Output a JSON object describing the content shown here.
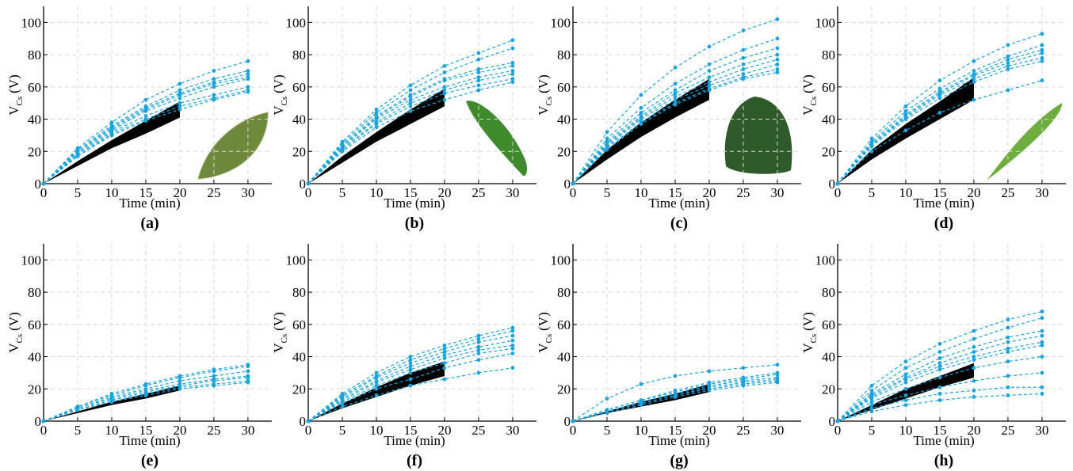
{
  "chart_data": [
    {
      "type": "line",
      "caption": "(a)",
      "x_label": "Time (min)",
      "y_label": "V",
      "y_label_sub": "Cs",
      "y_label_unit": "(V)",
      "grid": true,
      "x": [
        0,
        5,
        10,
        15,
        20,
        25,
        30
      ],
      "xlim": [
        0,
        33.5
      ],
      "ylim": [
        0,
        110
      ],
      "xticks": [
        0,
        5,
        10,
        15,
        20,
        25,
        30
      ],
      "yticks": [
        0,
        20,
        40,
        60,
        80,
        100
      ],
      "series": [
        {
          "color": "#1aa3dc",
          "values": [
            0,
            22,
            38,
            52,
            62,
            70,
            76
          ]
        },
        {
          "color": "#1aa3dc",
          "values": [
            0,
            21,
            36,
            48,
            58,
            65,
            70
          ]
        },
        {
          "color": "#1aa3dc",
          "values": [
            0,
            20,
            35,
            47,
            56,
            63,
            68
          ]
        },
        {
          "color": "#1aa3dc",
          "values": [
            0,
            20,
            34,
            46,
            55,
            62,
            66
          ]
        },
        {
          "color": "#1aa3dc",
          "values": [
            0,
            19,
            33,
            45,
            53,
            60,
            65
          ]
        },
        {
          "color": "#1aa3dc",
          "values": [
            0,
            18,
            32,
            42,
            50,
            55,
            60
          ]
        },
        {
          "color": "#1aa3dc",
          "values": [
            0,
            17,
            31,
            40,
            48,
            53,
            58
          ]
        },
        {
          "color": "#1aa3dc",
          "values": [
            0,
            17,
            30,
            39,
            46,
            52,
            57
          ]
        }
      ],
      "band": {
        "color": "#000000",
        "x": [
          0,
          5,
          10,
          15,
          20
        ],
        "upper": [
          0,
          14,
          27,
          39,
          51
        ],
        "lower": [
          0,
          11,
          22,
          31,
          41
        ]
      }
    },
    {
      "type": "line",
      "caption": "(b)",
      "x_label": "Time (min)",
      "y_label": "V",
      "y_label_sub": "Cs",
      "y_label_unit": "(V)",
      "grid": true,
      "x": [
        0,
        5,
        10,
        15,
        20,
        25,
        30
      ],
      "xlim": [
        0,
        33.5
      ],
      "ylim": [
        0,
        110
      ],
      "xticks": [
        0,
        5,
        10,
        15,
        20,
        25,
        30
      ],
      "yticks": [
        0,
        20,
        40,
        60,
        80,
        100
      ],
      "series": [
        {
          "color": "#1aa3dc",
          "values": [
            0,
            26,
            46,
            61,
            73,
            81,
            89
          ]
        },
        {
          "color": "#1aa3dc",
          "values": [
            0,
            25,
            44,
            58,
            69,
            77,
            84
          ]
        },
        {
          "color": "#1aa3dc",
          "values": [
            0,
            24,
            42,
            55,
            65,
            71,
            75
          ]
        },
        {
          "color": "#1aa3dc",
          "values": [
            0,
            23,
            41,
            54,
            64,
            69,
            73
          ]
        },
        {
          "color": "#1aa3dc",
          "values": [
            0,
            23,
            40,
            52,
            60,
            66,
            70
          ]
        },
        {
          "color": "#1aa3dc",
          "values": [
            0,
            22,
            38,
            50,
            58,
            64,
            68
          ]
        },
        {
          "color": "#1aa3dc",
          "values": [
            0,
            21,
            37,
            48,
            56,
            61,
            65
          ]
        },
        {
          "color": "#1aa3dc",
          "values": [
            0,
            20,
            35,
            45,
            52,
            58,
            63
          ]
        }
      ],
      "band": {
        "color": "#000000",
        "x": [
          0,
          5,
          10,
          15,
          20
        ],
        "upper": [
          0,
          17,
          32,
          46,
          59
        ],
        "lower": [
          0,
          13,
          26,
          37,
          48
        ]
      }
    },
    {
      "type": "line",
      "caption": "(c)",
      "x_label": "Time (min)",
      "y_label": "V",
      "y_label_sub": "Cs",
      "y_label_unit": "(V)",
      "grid": true,
      "x": [
        0,
        5,
        10,
        15,
        20,
        25,
        30
      ],
      "xlim": [
        0,
        33.5
      ],
      "ylim": [
        0,
        110
      ],
      "xticks": [
        0,
        5,
        10,
        15,
        20,
        25,
        30
      ],
      "yticks": [
        0,
        20,
        40,
        60,
        80,
        100
      ],
      "series": [
        {
          "color": "#1aa3dc",
          "values": [
            0,
            32,
            55,
            72,
            85,
            95,
            102
          ]
        },
        {
          "color": "#1aa3dc",
          "values": [
            0,
            28,
            47,
            62,
            74,
            83,
            90
          ]
        },
        {
          "color": "#1aa3dc",
          "values": [
            0,
            26,
            44,
            58,
            70,
            78,
            84
          ]
        },
        {
          "color": "#1aa3dc",
          "values": [
            0,
            25,
            42,
            56,
            66,
            74,
            80
          ]
        },
        {
          "color": "#1aa3dc",
          "values": [
            0,
            24,
            41,
            54,
            63,
            71,
            77
          ]
        },
        {
          "color": "#1aa3dc",
          "values": [
            0,
            23,
            40,
            52,
            61,
            68,
            74
          ]
        },
        {
          "color": "#1aa3dc",
          "values": [
            0,
            22,
            38,
            50,
            59,
            66,
            71
          ]
        },
        {
          "color": "#1aa3dc",
          "values": [
            0,
            21,
            37,
            49,
            58,
            65,
            69
          ]
        }
      ],
      "band": {
        "color": "#000000",
        "x": [
          0,
          5,
          10,
          15,
          20
        ],
        "upper": [
          0,
          21,
          38,
          52,
          65
        ],
        "lower": [
          0,
          15,
          29,
          41,
          52
        ]
      }
    },
    {
      "type": "line",
      "caption": "(d)",
      "x_label": "Time (min)",
      "y_label": "V",
      "y_label_sub": "Cs",
      "y_label_unit": "(V)",
      "grid": true,
      "x": [
        0,
        5,
        10,
        15,
        20,
        25,
        30
      ],
      "xlim": [
        0,
        33.5
      ],
      "ylim": [
        0,
        110
      ],
      "xticks": [
        0,
        5,
        10,
        15,
        20,
        25,
        30
      ],
      "yticks": [
        0,
        20,
        40,
        60,
        80,
        100
      ],
      "series": [
        {
          "color": "#1aa3dc",
          "values": [
            0,
            28,
            48,
            64,
            76,
            86,
            93
          ]
        },
        {
          "color": "#1aa3dc",
          "values": [
            0,
            26,
            45,
            59,
            70,
            79,
            86
          ]
        },
        {
          "color": "#1aa3dc",
          "values": [
            0,
            25,
            43,
            57,
            68,
            77,
            83
          ]
        },
        {
          "color": "#1aa3dc",
          "values": [
            0,
            24,
            42,
            56,
            67,
            75,
            81
          ]
        },
        {
          "color": "#1aa3dc",
          "values": [
            0,
            24,
            41,
            55,
            65,
            73,
            78
          ]
        },
        {
          "color": "#1aa3dc",
          "values": [
            0,
            23,
            40,
            53,
            63,
            71,
            76
          ]
        },
        {
          "color": "#1aa3dc",
          "values": [
            0,
            20,
            33,
            44,
            52,
            58,
            64
          ]
        }
      ],
      "band": {
        "color": "#000000",
        "x": [
          0,
          5,
          10,
          15,
          20
        ],
        "upper": [
          0,
          21,
          37,
          51,
          66
        ],
        "lower": [
          0,
          15,
          28,
          40,
          52
        ]
      }
    },
    {
      "type": "line",
      "caption": "(e)",
      "x_label": "Time (min)",
      "y_label": "V",
      "y_label_sub": "Cs",
      "y_label_unit": "(V)",
      "grid": true,
      "x": [
        0,
        5,
        10,
        15,
        20,
        25,
        30
      ],
      "xlim": [
        0,
        33.5
      ],
      "ylim": [
        0,
        110
      ],
      "xticks": [
        0,
        5,
        10,
        15,
        20,
        25,
        30
      ],
      "yticks": [
        0,
        20,
        40,
        60,
        80,
        100
      ],
      "series": [
        {
          "color": "#1aa3dc",
          "values": [
            0,
            9,
            17,
            23,
            28,
            32,
            35
          ]
        },
        {
          "color": "#1aa3dc",
          "values": [
            0,
            9,
            16,
            22,
            27,
            31,
            34
          ]
        },
        {
          "color": "#1aa3dc",
          "values": [
            0,
            8,
            15,
            20,
            25,
            28,
            31
          ]
        },
        {
          "color": "#1aa3dc",
          "values": [
            0,
            8,
            14,
            19,
            23,
            26,
            28
          ]
        },
        {
          "color": "#1aa3dc",
          "values": [
            0,
            7,
            13,
            18,
            22,
            25,
            27
          ]
        },
        {
          "color": "#1aa3dc",
          "values": [
            0,
            7,
            12,
            17,
            21,
            23,
            25
          ]
        },
        {
          "color": "#1aa3dc",
          "values": [
            0,
            7,
            12,
            16,
            20,
            22,
            24
          ]
        }
      ],
      "band": {
        "color": "#000000",
        "x": [
          0,
          5,
          10,
          15,
          20
        ],
        "upper": [
          0,
          6,
          12,
          17,
          22
        ],
        "lower": [
          0,
          5,
          10,
          14,
          19
        ]
      }
    },
    {
      "type": "line",
      "caption": "(f)",
      "x_label": "Time (min)",
      "y_label": "V",
      "y_label_sub": "Cs",
      "y_label_unit": "(V)",
      "grid": true,
      "x": [
        0,
        5,
        10,
        15,
        20,
        25,
        30
      ],
      "xlim": [
        0,
        33.5
      ],
      "ylim": [
        0,
        110
      ],
      "xticks": [
        0,
        5,
        10,
        15,
        20,
        25,
        30
      ],
      "yticks": [
        0,
        20,
        40,
        60,
        80,
        100
      ],
      "series": [
        {
          "color": "#1aa3dc",
          "values": [
            0,
            17,
            30,
            40,
            47,
            53,
            58
          ]
        },
        {
          "color": "#1aa3dc",
          "values": [
            0,
            16,
            28,
            38,
            45,
            51,
            56
          ]
        },
        {
          "color": "#1aa3dc",
          "values": [
            0,
            15,
            27,
            36,
            43,
            49,
            53
          ]
        },
        {
          "color": "#1aa3dc",
          "values": [
            0,
            14,
            25,
            34,
            41,
            46,
            50
          ]
        },
        {
          "color": "#1aa3dc",
          "values": [
            0,
            13,
            24,
            32,
            39,
            44,
            47
          ]
        },
        {
          "color": "#1aa3dc",
          "values": [
            0,
            12,
            22,
            30,
            36,
            42,
            45
          ]
        },
        {
          "color": "#1aa3dc",
          "values": [
            0,
            11,
            20,
            26,
            33,
            38,
            42
          ]
        },
        {
          "color": "#1aa3dc",
          "values": [
            0,
            9,
            16,
            22,
            26,
            30,
            33
          ]
        }
      ],
      "band": {
        "color": "#000000",
        "x": [
          0,
          5,
          10,
          15,
          20
        ],
        "upper": [
          0,
          11,
          21,
          30,
          37
        ],
        "lower": [
          0,
          8,
          15,
          22,
          28
        ]
      }
    },
    {
      "type": "line",
      "caption": "(g)",
      "x_label": "Time (min)",
      "y_label": "V",
      "y_label_sub": "Cs",
      "y_label_unit": "(V)",
      "grid": true,
      "x": [
        0,
        5,
        10,
        15,
        20,
        25,
        30
      ],
      "xlim": [
        0,
        33.5
      ],
      "ylim": [
        0,
        110
      ],
      "xticks": [
        0,
        5,
        10,
        15,
        20,
        25,
        30
      ],
      "yticks": [
        0,
        20,
        40,
        60,
        80,
        100
      ],
      "series": [
        {
          "color": "#1aa3dc",
          "values": [
            0,
            14,
            23,
            28,
            31,
            33,
            35
          ]
        },
        {
          "color": "#1aa3dc",
          "values": [
            0,
            7,
            13,
            19,
            24,
            27,
            30
          ]
        },
        {
          "color": "#1aa3dc",
          "values": [
            0,
            7,
            13,
            18,
            23,
            26,
            29
          ]
        },
        {
          "color": "#1aa3dc",
          "values": [
            0,
            6,
            12,
            17,
            22,
            25,
            27
          ]
        },
        {
          "color": "#1aa3dc",
          "values": [
            0,
            6,
            11,
            16,
            21,
            24,
            26
          ]
        },
        {
          "color": "#1aa3dc",
          "values": [
            0,
            6,
            11,
            16,
            20,
            23,
            25
          ]
        },
        {
          "color": "#1aa3dc",
          "values": [
            0,
            5,
            10,
            15,
            19,
            22,
            24
          ]
        }
      ],
      "band": {
        "color": "#000000",
        "x": [
          0,
          5,
          10,
          15,
          20
        ],
        "upper": [
          0,
          6,
          12,
          17,
          23
        ],
        "lower": [
          0,
          5,
          9,
          13,
          18
        ]
      }
    },
    {
      "type": "line",
      "caption": "(h)",
      "x_label": "Time (min)",
      "y_label": "V",
      "y_label_sub": "Cs",
      "y_label_unit": "(V)",
      "grid": true,
      "x": [
        0,
        5,
        10,
        15,
        20,
        25,
        30
      ],
      "xlim": [
        0,
        33.5
      ],
      "ylim": [
        0,
        110
      ],
      "xticks": [
        0,
        5,
        10,
        15,
        20,
        25,
        30
      ],
      "yticks": [
        0,
        20,
        40,
        60,
        80,
        100
      ],
      "series": [
        {
          "color": "#1aa3dc",
          "values": [
            0,
            22,
            37,
            48,
            56,
            63,
            68
          ]
        },
        {
          "color": "#1aa3dc",
          "values": [
            0,
            19,
            33,
            43,
            51,
            58,
            64
          ]
        },
        {
          "color": "#1aa3dc",
          "values": [
            0,
            17,
            29,
            39,
            46,
            52,
            56
          ]
        },
        {
          "color": "#1aa3dc",
          "values": [
            0,
            16,
            27,
            36,
            43,
            49,
            53
          ]
        },
        {
          "color": "#1aa3dc",
          "values": [
            0,
            15,
            26,
            34,
            40,
            45,
            49
          ]
        },
        {
          "color": "#1aa3dc",
          "values": [
            0,
            14,
            24,
            32,
            38,
            43,
            47
          ]
        },
        {
          "color": "#1aa3dc",
          "values": [
            0,
            12,
            20,
            27,
            33,
            37,
            40
          ]
        },
        {
          "color": "#1aa3dc",
          "values": [
            0,
            10,
            16,
            21,
            25,
            28,
            30
          ]
        },
        {
          "color": "#1aa3dc",
          "values": [
            0,
            8,
            13,
            17,
            19,
            21,
            21
          ]
        },
        {
          "color": "#1aa3dc",
          "values": [
            0,
            6,
            10,
            13,
            15,
            16,
            17
          ]
        }
      ],
      "band": {
        "color": "#000000",
        "x": [
          0,
          5,
          10,
          15,
          20
        ],
        "upper": [
          0,
          10,
          20,
          28,
          36
        ],
        "lower": [
          0,
          7,
          14,
          21,
          27
        ]
      }
    }
  ]
}
